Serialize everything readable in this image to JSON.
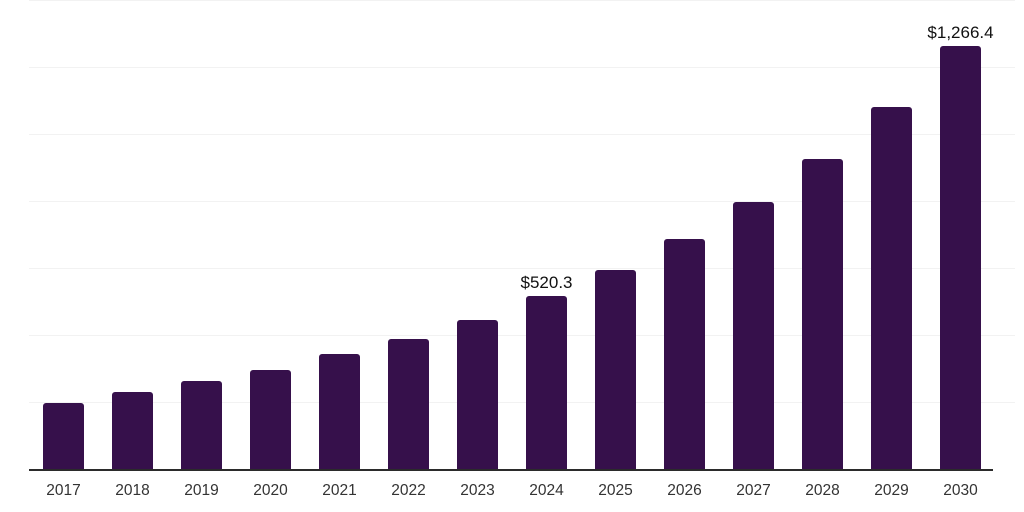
{
  "chart_data": {
    "type": "bar",
    "title": "",
    "xlabel": "",
    "ylabel": "",
    "categories": [
      "2017",
      "2018",
      "2019",
      "2020",
      "2021",
      "2022",
      "2023",
      "2024",
      "2025",
      "2026",
      "2027",
      "2028",
      "2029",
      "2030"
    ],
    "values": [
      200,
      232,
      265,
      300,
      345,
      392,
      449,
      520.3,
      598,
      690,
      800,
      928,
      1083,
      1266.4
    ],
    "data_labels": [
      null,
      null,
      null,
      null,
      null,
      null,
      null,
      "$520.3",
      null,
      null,
      null,
      null,
      null,
      "$1,266.4"
    ],
    "ylim": [
      0,
      1400
    ],
    "grid_interval": 200,
    "grid": "horizontal",
    "y_tick_labels_visible": false,
    "legend_position": "none",
    "colors": {
      "bar": "#36104B",
      "axis_line": "#2b2b2b",
      "gridline": "#f2f2f2",
      "data_label": "#111111",
      "tick_label": "#333333",
      "background": "#ffffff"
    }
  }
}
